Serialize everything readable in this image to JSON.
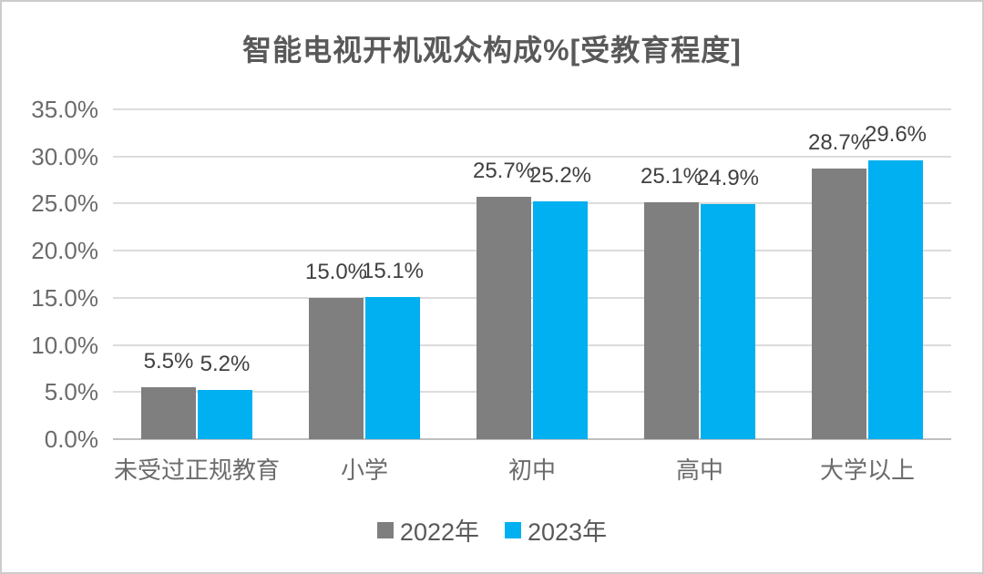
{
  "title": "智能电视开机观众构成%[受教育程度]",
  "colors": {
    "series_2022": "#7f7f7f",
    "series_2023": "#00b0f0",
    "gridline": "#dcdcdc",
    "axis_line": "#bfbfbf",
    "title_text": "#595959",
    "axis_text": "#6b6b6b",
    "data_label_text": "#404040",
    "frame_border": "#cccccc"
  },
  "chart_data": {
    "type": "bar",
    "title": "智能电视开机观众构成%[受教育程度]",
    "categories": [
      "未受过正规教育",
      "小学",
      "初中",
      "高中",
      "大学以上"
    ],
    "series": [
      {
        "name": "2022年",
        "color": "#7f7f7f",
        "values": [
          5.5,
          15.0,
          25.7,
          25.1,
          28.7
        ]
      },
      {
        "name": "2023年",
        "color": "#00b0f0",
        "values": [
          5.2,
          15.1,
          25.2,
          24.9,
          29.6
        ]
      }
    ],
    "xlabel": "",
    "ylabel": "",
    "ylim": [
      0,
      35
    ],
    "ytick_step": 5,
    "ytick_labels": [
      "0.0%",
      "5.0%",
      "10.0%",
      "15.0%",
      "20.0%",
      "25.0%",
      "30.0%",
      "35.0%"
    ],
    "value_suffix": "%",
    "value_decimals": 1,
    "grid": true,
    "legend_position": "bottom"
  }
}
